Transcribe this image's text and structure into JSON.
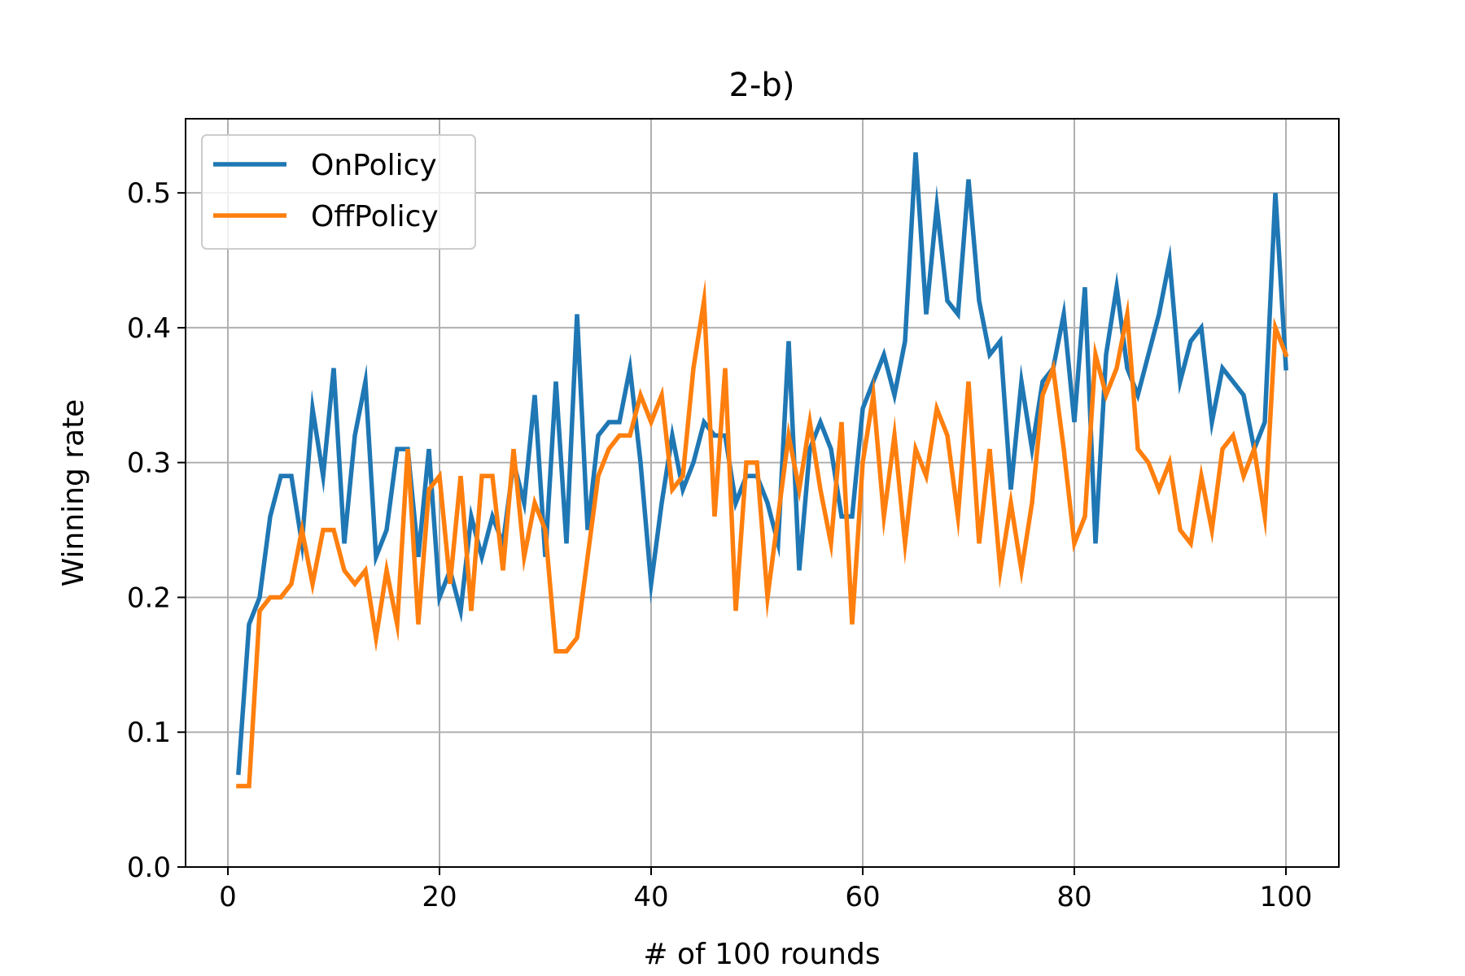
{
  "chart_data": {
    "type": "line",
    "title": "2-b)",
    "xlabel": "# of 100 rounds",
    "ylabel": "Winning rate",
    "xlim": [
      -4,
      105
    ],
    "ylim": [
      0,
      0.555
    ],
    "xticks": [
      0,
      20,
      40,
      60,
      80,
      100
    ],
    "xtick_labels": [
      "0",
      "20",
      "40",
      "60",
      "80",
      "100"
    ],
    "yticks": [
      0.0,
      0.1,
      0.2,
      0.3,
      0.4,
      0.5
    ],
    "ytick_labels": [
      "0.0",
      "0.1",
      "0.2",
      "0.3",
      "0.4",
      "0.5"
    ],
    "grid": true,
    "legend_position": "top-left",
    "x": [
      1,
      2,
      3,
      4,
      5,
      6,
      7,
      8,
      9,
      10,
      11,
      12,
      13,
      14,
      15,
      16,
      17,
      18,
      19,
      20,
      21,
      22,
      23,
      24,
      25,
      26,
      27,
      28,
      29,
      30,
      31,
      32,
      33,
      34,
      35,
      36,
      37,
      38,
      39,
      40,
      41,
      42,
      43,
      44,
      45,
      46,
      47,
      48,
      49,
      50,
      51,
      52,
      53,
      54,
      55,
      56,
      57,
      58,
      59,
      60,
      61,
      62,
      63,
      64,
      65,
      66,
      67,
      68,
      69,
      70,
      71,
      72,
      73,
      74,
      75,
      76,
      77,
      78,
      79,
      80,
      81,
      82,
      83,
      84,
      85,
      86,
      87,
      88,
      89,
      90,
      91,
      92,
      93,
      94,
      95,
      96,
      97,
      98,
      99,
      100
    ],
    "series": [
      {
        "name": "OnPolicy",
        "color": "#1f77b4",
        "values": [
          0.07,
          0.18,
          0.2,
          0.26,
          0.29,
          0.29,
          0.24,
          0.34,
          0.29,
          0.37,
          0.24,
          0.32,
          0.36,
          0.23,
          0.25,
          0.31,
          0.31,
          0.23,
          0.31,
          0.2,
          0.22,
          0.19,
          0.26,
          0.23,
          0.26,
          0.24,
          0.3,
          0.27,
          0.35,
          0.23,
          0.36,
          0.24,
          0.41,
          0.25,
          0.32,
          0.33,
          0.33,
          0.37,
          0.3,
          0.21,
          0.27,
          0.32,
          0.28,
          0.3,
          0.33,
          0.32,
          0.32,
          0.27,
          0.29,
          0.29,
          0.27,
          0.24,
          0.39,
          0.22,
          0.31,
          0.33,
          0.31,
          0.26,
          0.26,
          0.34,
          0.36,
          0.38,
          0.35,
          0.39,
          0.53,
          0.41,
          0.49,
          0.42,
          0.41,
          0.51,
          0.42,
          0.38,
          0.39,
          0.28,
          0.36,
          0.31,
          0.36,
          0.37,
          0.41,
          0.33,
          0.43,
          0.24,
          0.38,
          0.43,
          0.37,
          0.35,
          0.38,
          0.41,
          0.45,
          0.36,
          0.39,
          0.4,
          0.33,
          0.37,
          0.36,
          0.35,
          0.31,
          0.33,
          0.5,
          0.37
        ]
      },
      {
        "name": "OffPolicy",
        "color": "#ff7f0e",
        "values": [
          0.06,
          0.06,
          0.19,
          0.2,
          0.2,
          0.21,
          0.25,
          0.21,
          0.25,
          0.25,
          0.22,
          0.21,
          0.22,
          0.17,
          0.22,
          0.18,
          0.31,
          0.18,
          0.28,
          0.29,
          0.21,
          0.29,
          0.19,
          0.29,
          0.29,
          0.22,
          0.31,
          0.23,
          0.27,
          0.25,
          0.16,
          0.16,
          0.17,
          0.23,
          0.29,
          0.31,
          0.32,
          0.32,
          0.35,
          0.33,
          0.35,
          0.28,
          0.29,
          0.37,
          0.42,
          0.26,
          0.37,
          0.19,
          0.3,
          0.3,
          0.2,
          0.26,
          0.32,
          0.28,
          0.33,
          0.28,
          0.24,
          0.33,
          0.18,
          0.3,
          0.35,
          0.26,
          0.32,
          0.24,
          0.31,
          0.29,
          0.34,
          0.32,
          0.26,
          0.36,
          0.24,
          0.31,
          0.22,
          0.27,
          0.22,
          0.27,
          0.35,
          0.37,
          0.31,
          0.24,
          0.26,
          0.38,
          0.35,
          0.37,
          0.41,
          0.31,
          0.3,
          0.28,
          0.3,
          0.25,
          0.24,
          0.29,
          0.25,
          0.31,
          0.32,
          0.29,
          0.31,
          0.26,
          0.4,
          0.38
        ]
      }
    ]
  }
}
